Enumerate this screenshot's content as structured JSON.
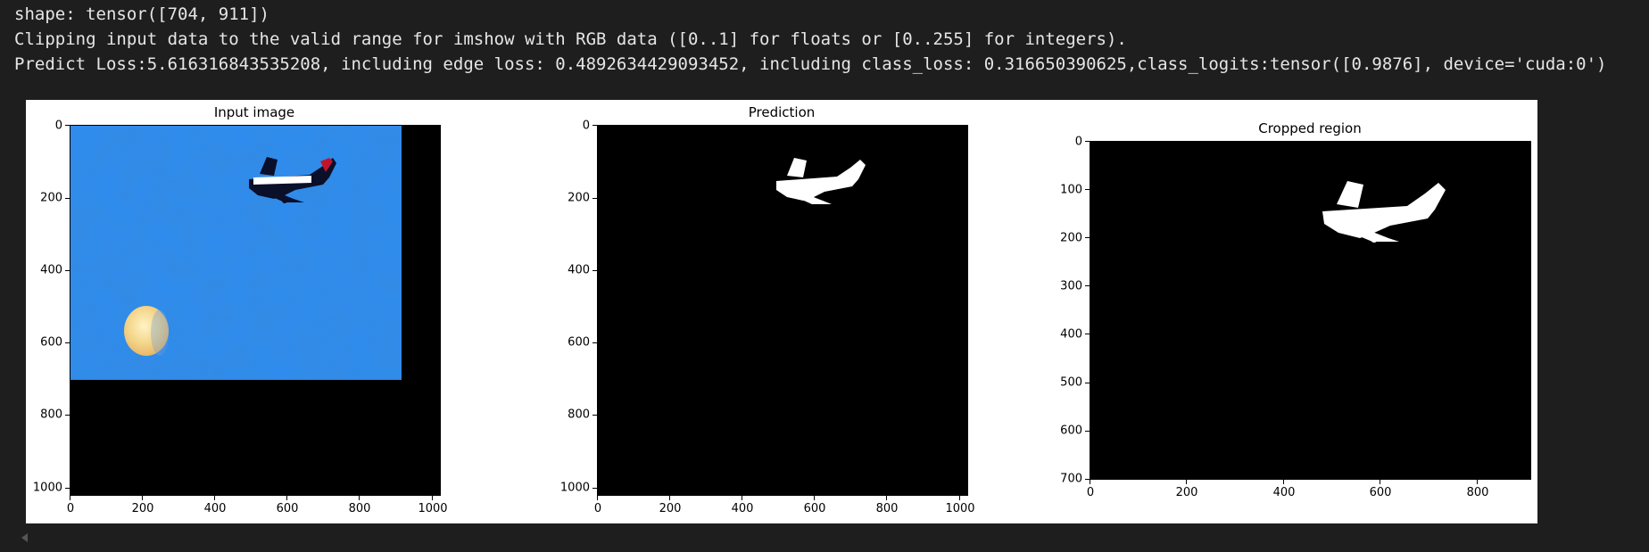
{
  "output": {
    "line1": "shape: tensor([704, 911])",
    "line2": "Clipping input data to the valid range for imshow with RGB data ([0..1] for floats or [0..255] for integers).",
    "line3": "Predict Loss:5.616316843535208, including edge loss: 0.4892634429093452, including class_loss: 0.316650390625,class_logits:tensor([0.9876], device='cuda:0')"
  },
  "figure": {
    "panels": [
      {
        "title": "Input image",
        "xticks": [
          "0",
          "200",
          "400",
          "600",
          "800",
          "1000"
        ],
        "yticks": [
          "0",
          "200",
          "400",
          "600",
          "800",
          "1000"
        ]
      },
      {
        "title": "Prediction",
        "xticks": [
          "0",
          "200",
          "400",
          "600",
          "800",
          "1000"
        ],
        "yticks": [
          "0",
          "200",
          "400",
          "600",
          "800",
          "1000"
        ]
      },
      {
        "title": "Cropped region",
        "xticks": [
          "0",
          "200",
          "400",
          "600",
          "800"
        ],
        "yticks": [
          "0",
          "100",
          "200",
          "300",
          "400",
          "500",
          "600",
          "700"
        ]
      }
    ]
  },
  "colors": {
    "background": "#1e1e1e",
    "figure_bg": "#ffffff",
    "sky": "#2e8cf0",
    "moon": "#f3d58a"
  },
  "icons": {
    "scroll_left": "caret-left-icon"
  }
}
